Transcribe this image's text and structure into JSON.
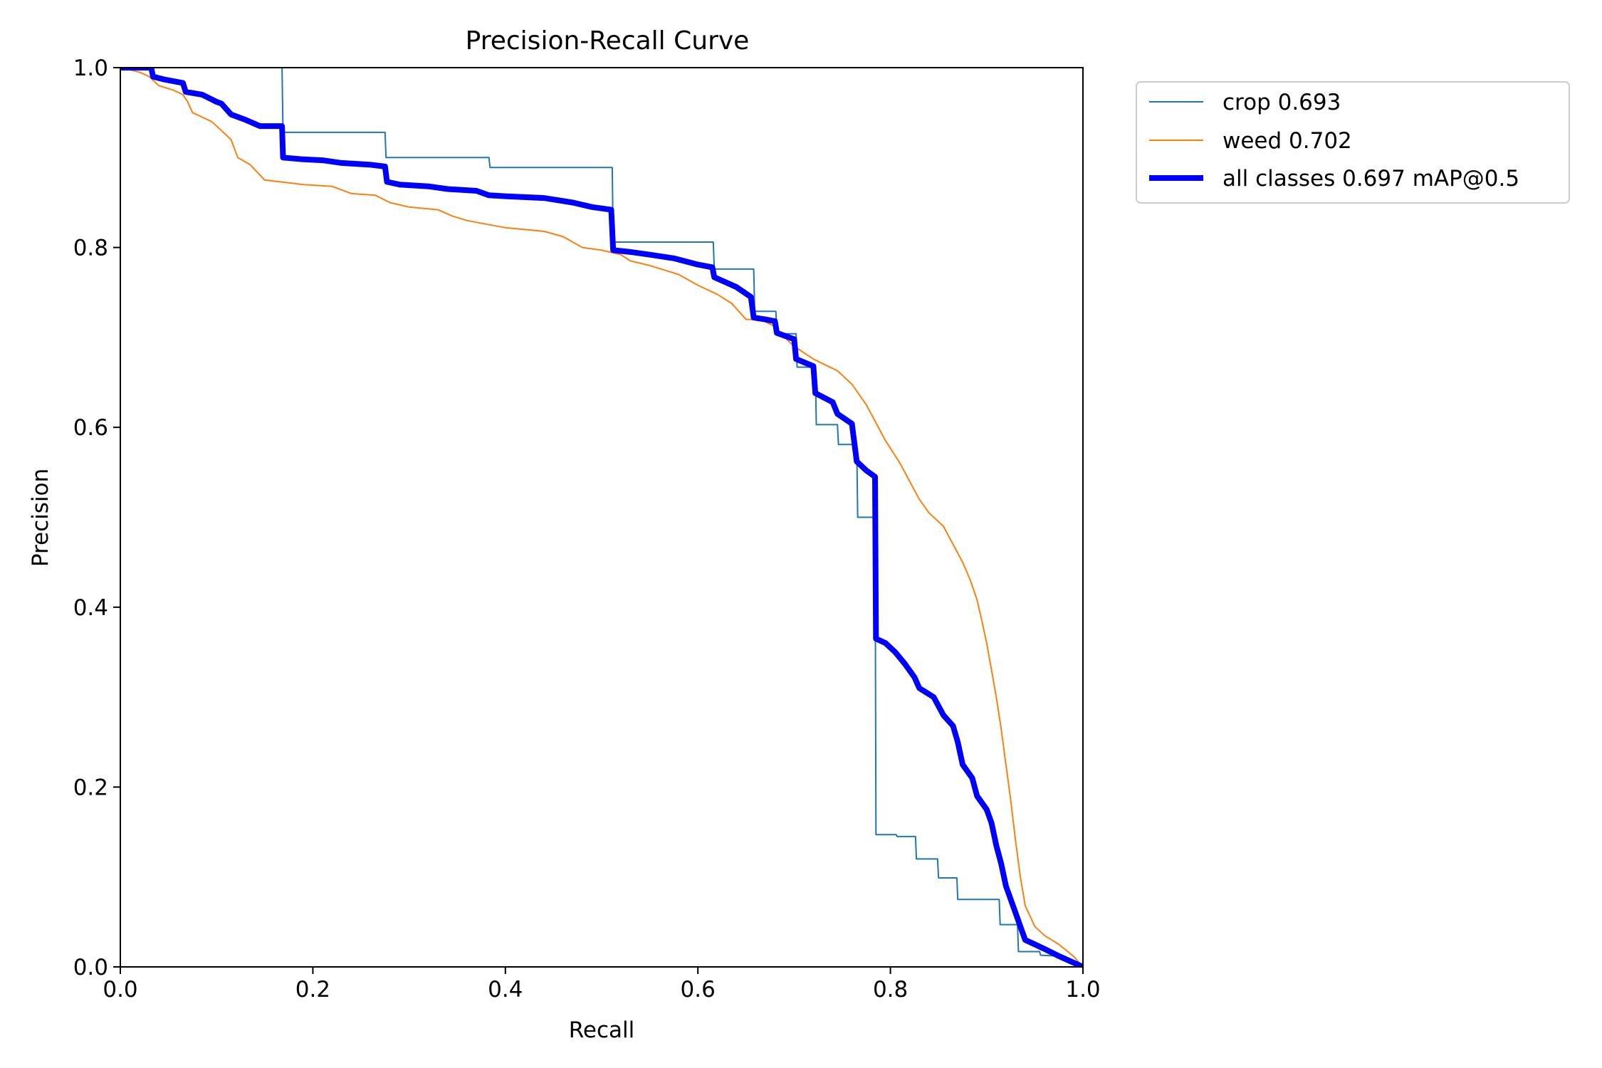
{
  "chart_data": {
    "type": "line",
    "title": "Precision-Recall Curve",
    "xlabel": "Recall",
    "ylabel": "Precision",
    "xlim": [
      0,
      1
    ],
    "ylim": [
      0,
      1
    ],
    "xticks": [
      "0.0",
      "0.2",
      "0.4",
      "0.6",
      "0.8",
      "1.0"
    ],
    "yticks": [
      "0.0",
      "0.2",
      "0.4",
      "0.6",
      "0.8",
      "1.0"
    ],
    "grid": false,
    "legend_position": "outside-top-right",
    "series": [
      {
        "name": "crop",
        "legend_label": "crop 0.693",
        "ap": 0.693,
        "color": "#1f77b4",
        "style": "thin",
        "points": [
          [
            0.0,
            1.0
          ],
          [
            0.168,
            1.0
          ],
          [
            0.169,
            0.928
          ],
          [
            0.275,
            0.928
          ],
          [
            0.276,
            0.9
          ],
          [
            0.383,
            0.9
          ],
          [
            0.384,
            0.889
          ],
          [
            0.511,
            0.889
          ],
          [
            0.512,
            0.806
          ],
          [
            0.616,
            0.806
          ],
          [
            0.617,
            0.776
          ],
          [
            0.658,
            0.776
          ],
          [
            0.659,
            0.729
          ],
          [
            0.681,
            0.729
          ],
          [
            0.682,
            0.704
          ],
          [
            0.702,
            0.704
          ],
          [
            0.703,
            0.667
          ],
          [
            0.722,
            0.667
          ],
          [
            0.723,
            0.603
          ],
          [
            0.745,
            0.603
          ],
          [
            0.746,
            0.581
          ],
          [
            0.765,
            0.581
          ],
          [
            0.766,
            0.5
          ],
          [
            0.784,
            0.5
          ],
          [
            0.785,
            0.147
          ],
          [
            0.806,
            0.147
          ],
          [
            0.807,
            0.145
          ],
          [
            0.826,
            0.145
          ],
          [
            0.827,
            0.12
          ],
          [
            0.849,
            0.12
          ],
          [
            0.85,
            0.099
          ],
          [
            0.869,
            0.099
          ],
          [
            0.87,
            0.075
          ],
          [
            0.913,
            0.075
          ],
          [
            0.914,
            0.047
          ],
          [
            0.932,
            0.047
          ],
          [
            0.933,
            0.017
          ],
          [
            0.955,
            0.017
          ],
          [
            0.956,
            0.013
          ],
          [
            0.975,
            0.012
          ],
          [
            1.0,
            0.0
          ]
        ]
      },
      {
        "name": "weed",
        "legend_label": "weed 0.702",
        "ap": 0.702,
        "color": "#ff7f0e",
        "style": "thin",
        "points": [
          [
            0.0,
            1.0
          ],
          [
            0.02,
            0.995
          ],
          [
            0.03,
            0.99
          ],
          [
            0.04,
            0.98
          ],
          [
            0.055,
            0.975
          ],
          [
            0.065,
            0.97
          ],
          [
            0.07,
            0.962
          ],
          [
            0.075,
            0.95
          ],
          [
            0.085,
            0.945
          ],
          [
            0.095,
            0.94
          ],
          [
            0.105,
            0.93
          ],
          [
            0.115,
            0.92
          ],
          [
            0.122,
            0.9
          ],
          [
            0.135,
            0.892
          ],
          [
            0.15,
            0.875
          ],
          [
            0.175,
            0.872
          ],
          [
            0.19,
            0.87
          ],
          [
            0.22,
            0.868
          ],
          [
            0.24,
            0.86
          ],
          [
            0.265,
            0.858
          ],
          [
            0.28,
            0.85
          ],
          [
            0.3,
            0.845
          ],
          [
            0.33,
            0.842
          ],
          [
            0.345,
            0.835
          ],
          [
            0.36,
            0.83
          ],
          [
            0.38,
            0.826
          ],
          [
            0.4,
            0.822
          ],
          [
            0.44,
            0.818
          ],
          [
            0.46,
            0.812
          ],
          [
            0.48,
            0.8
          ],
          [
            0.5,
            0.797
          ],
          [
            0.52,
            0.792
          ],
          [
            0.53,
            0.785
          ],
          [
            0.55,
            0.78
          ],
          [
            0.58,
            0.77
          ],
          [
            0.6,
            0.758
          ],
          [
            0.62,
            0.748
          ],
          [
            0.635,
            0.738
          ],
          [
            0.65,
            0.72
          ],
          [
            0.665,
            0.72
          ],
          [
            0.68,
            0.712
          ],
          [
            0.695,
            0.695
          ],
          [
            0.7,
            0.69
          ],
          [
            0.72,
            0.676
          ],
          [
            0.735,
            0.668
          ],
          [
            0.745,
            0.663
          ],
          [
            0.76,
            0.648
          ],
          [
            0.775,
            0.625
          ],
          [
            0.785,
            0.605
          ],
          [
            0.795,
            0.585
          ],
          [
            0.81,
            0.56
          ],
          [
            0.82,
            0.54
          ],
          [
            0.83,
            0.52
          ],
          [
            0.84,
            0.505
          ],
          [
            0.855,
            0.49
          ],
          [
            0.865,
            0.47
          ],
          [
            0.875,
            0.45
          ],
          [
            0.883,
            0.43
          ],
          [
            0.89,
            0.408
          ],
          [
            0.895,
            0.385
          ],
          [
            0.9,
            0.36
          ],
          [
            0.905,
            0.33
          ],
          [
            0.91,
            0.3
          ],
          [
            0.915,
            0.265
          ],
          [
            0.92,
            0.225
          ],
          [
            0.925,
            0.185
          ],
          [
            0.93,
            0.14
          ],
          [
            0.935,
            0.1
          ],
          [
            0.94,
            0.068
          ],
          [
            0.95,
            0.045
          ],
          [
            0.96,
            0.035
          ],
          [
            0.975,
            0.025
          ],
          [
            0.99,
            0.012
          ],
          [
            1.0,
            0.0
          ]
        ]
      },
      {
        "name": "all classes",
        "legend_label": "all classes 0.697 mAP@0.5",
        "ap": 0.697,
        "color": "#0000ff",
        "style": "thick",
        "points": [
          [
            0.0,
            1.0
          ],
          [
            0.032,
            1.0
          ],
          [
            0.034,
            0.99
          ],
          [
            0.045,
            0.987
          ],
          [
            0.065,
            0.983
          ],
          [
            0.068,
            0.973
          ],
          [
            0.085,
            0.97
          ],
          [
            0.1,
            0.962
          ],
          [
            0.105,
            0.96
          ],
          [
            0.115,
            0.948
          ],
          [
            0.13,
            0.942
          ],
          [
            0.145,
            0.935
          ],
          [
            0.168,
            0.935
          ],
          [
            0.169,
            0.9
          ],
          [
            0.19,
            0.898
          ],
          [
            0.21,
            0.897
          ],
          [
            0.23,
            0.894
          ],
          [
            0.26,
            0.892
          ],
          [
            0.275,
            0.89
          ],
          [
            0.277,
            0.873
          ],
          [
            0.29,
            0.87
          ],
          [
            0.32,
            0.868
          ],
          [
            0.34,
            0.865
          ],
          [
            0.37,
            0.863
          ],
          [
            0.383,
            0.858
          ],
          [
            0.4,
            0.857
          ],
          [
            0.44,
            0.855
          ],
          [
            0.47,
            0.85
          ],
          [
            0.49,
            0.845
          ],
          [
            0.51,
            0.842
          ],
          [
            0.512,
            0.797
          ],
          [
            0.53,
            0.795
          ],
          [
            0.55,
            0.792
          ],
          [
            0.575,
            0.788
          ],
          [
            0.6,
            0.781
          ],
          [
            0.615,
            0.778
          ],
          [
            0.617,
            0.767
          ],
          [
            0.64,
            0.756
          ],
          [
            0.655,
            0.745
          ],
          [
            0.658,
            0.722
          ],
          [
            0.67,
            0.72
          ],
          [
            0.68,
            0.718
          ],
          [
            0.682,
            0.705
          ],
          [
            0.7,
            0.698
          ],
          [
            0.702,
            0.676
          ],
          [
            0.72,
            0.668
          ],
          [
            0.722,
            0.638
          ],
          [
            0.74,
            0.628
          ],
          [
            0.745,
            0.615
          ],
          [
            0.76,
            0.604
          ],
          [
            0.765,
            0.562
          ],
          [
            0.775,
            0.552
          ],
          [
            0.784,
            0.545
          ],
          [
            0.785,
            0.365
          ],
          [
            0.795,
            0.36
          ],
          [
            0.805,
            0.35
          ],
          [
            0.815,
            0.337
          ],
          [
            0.825,
            0.322
          ],
          [
            0.83,
            0.31
          ],
          [
            0.845,
            0.3
          ],
          [
            0.855,
            0.28
          ],
          [
            0.865,
            0.268
          ],
          [
            0.87,
            0.25
          ],
          [
            0.875,
            0.225
          ],
          [
            0.885,
            0.21
          ],
          [
            0.89,
            0.19
          ],
          [
            0.9,
            0.175
          ],
          [
            0.905,
            0.16
          ],
          [
            0.91,
            0.135
          ],
          [
            0.915,
            0.115
          ],
          [
            0.92,
            0.09
          ],
          [
            0.925,
            0.075
          ],
          [
            0.93,
            0.06
          ],
          [
            0.935,
            0.045
          ],
          [
            0.94,
            0.03
          ],
          [
            0.95,
            0.025
          ],
          [
            0.96,
            0.02
          ],
          [
            0.975,
            0.012
          ],
          [
            1.0,
            0.0
          ]
        ]
      }
    ]
  }
}
